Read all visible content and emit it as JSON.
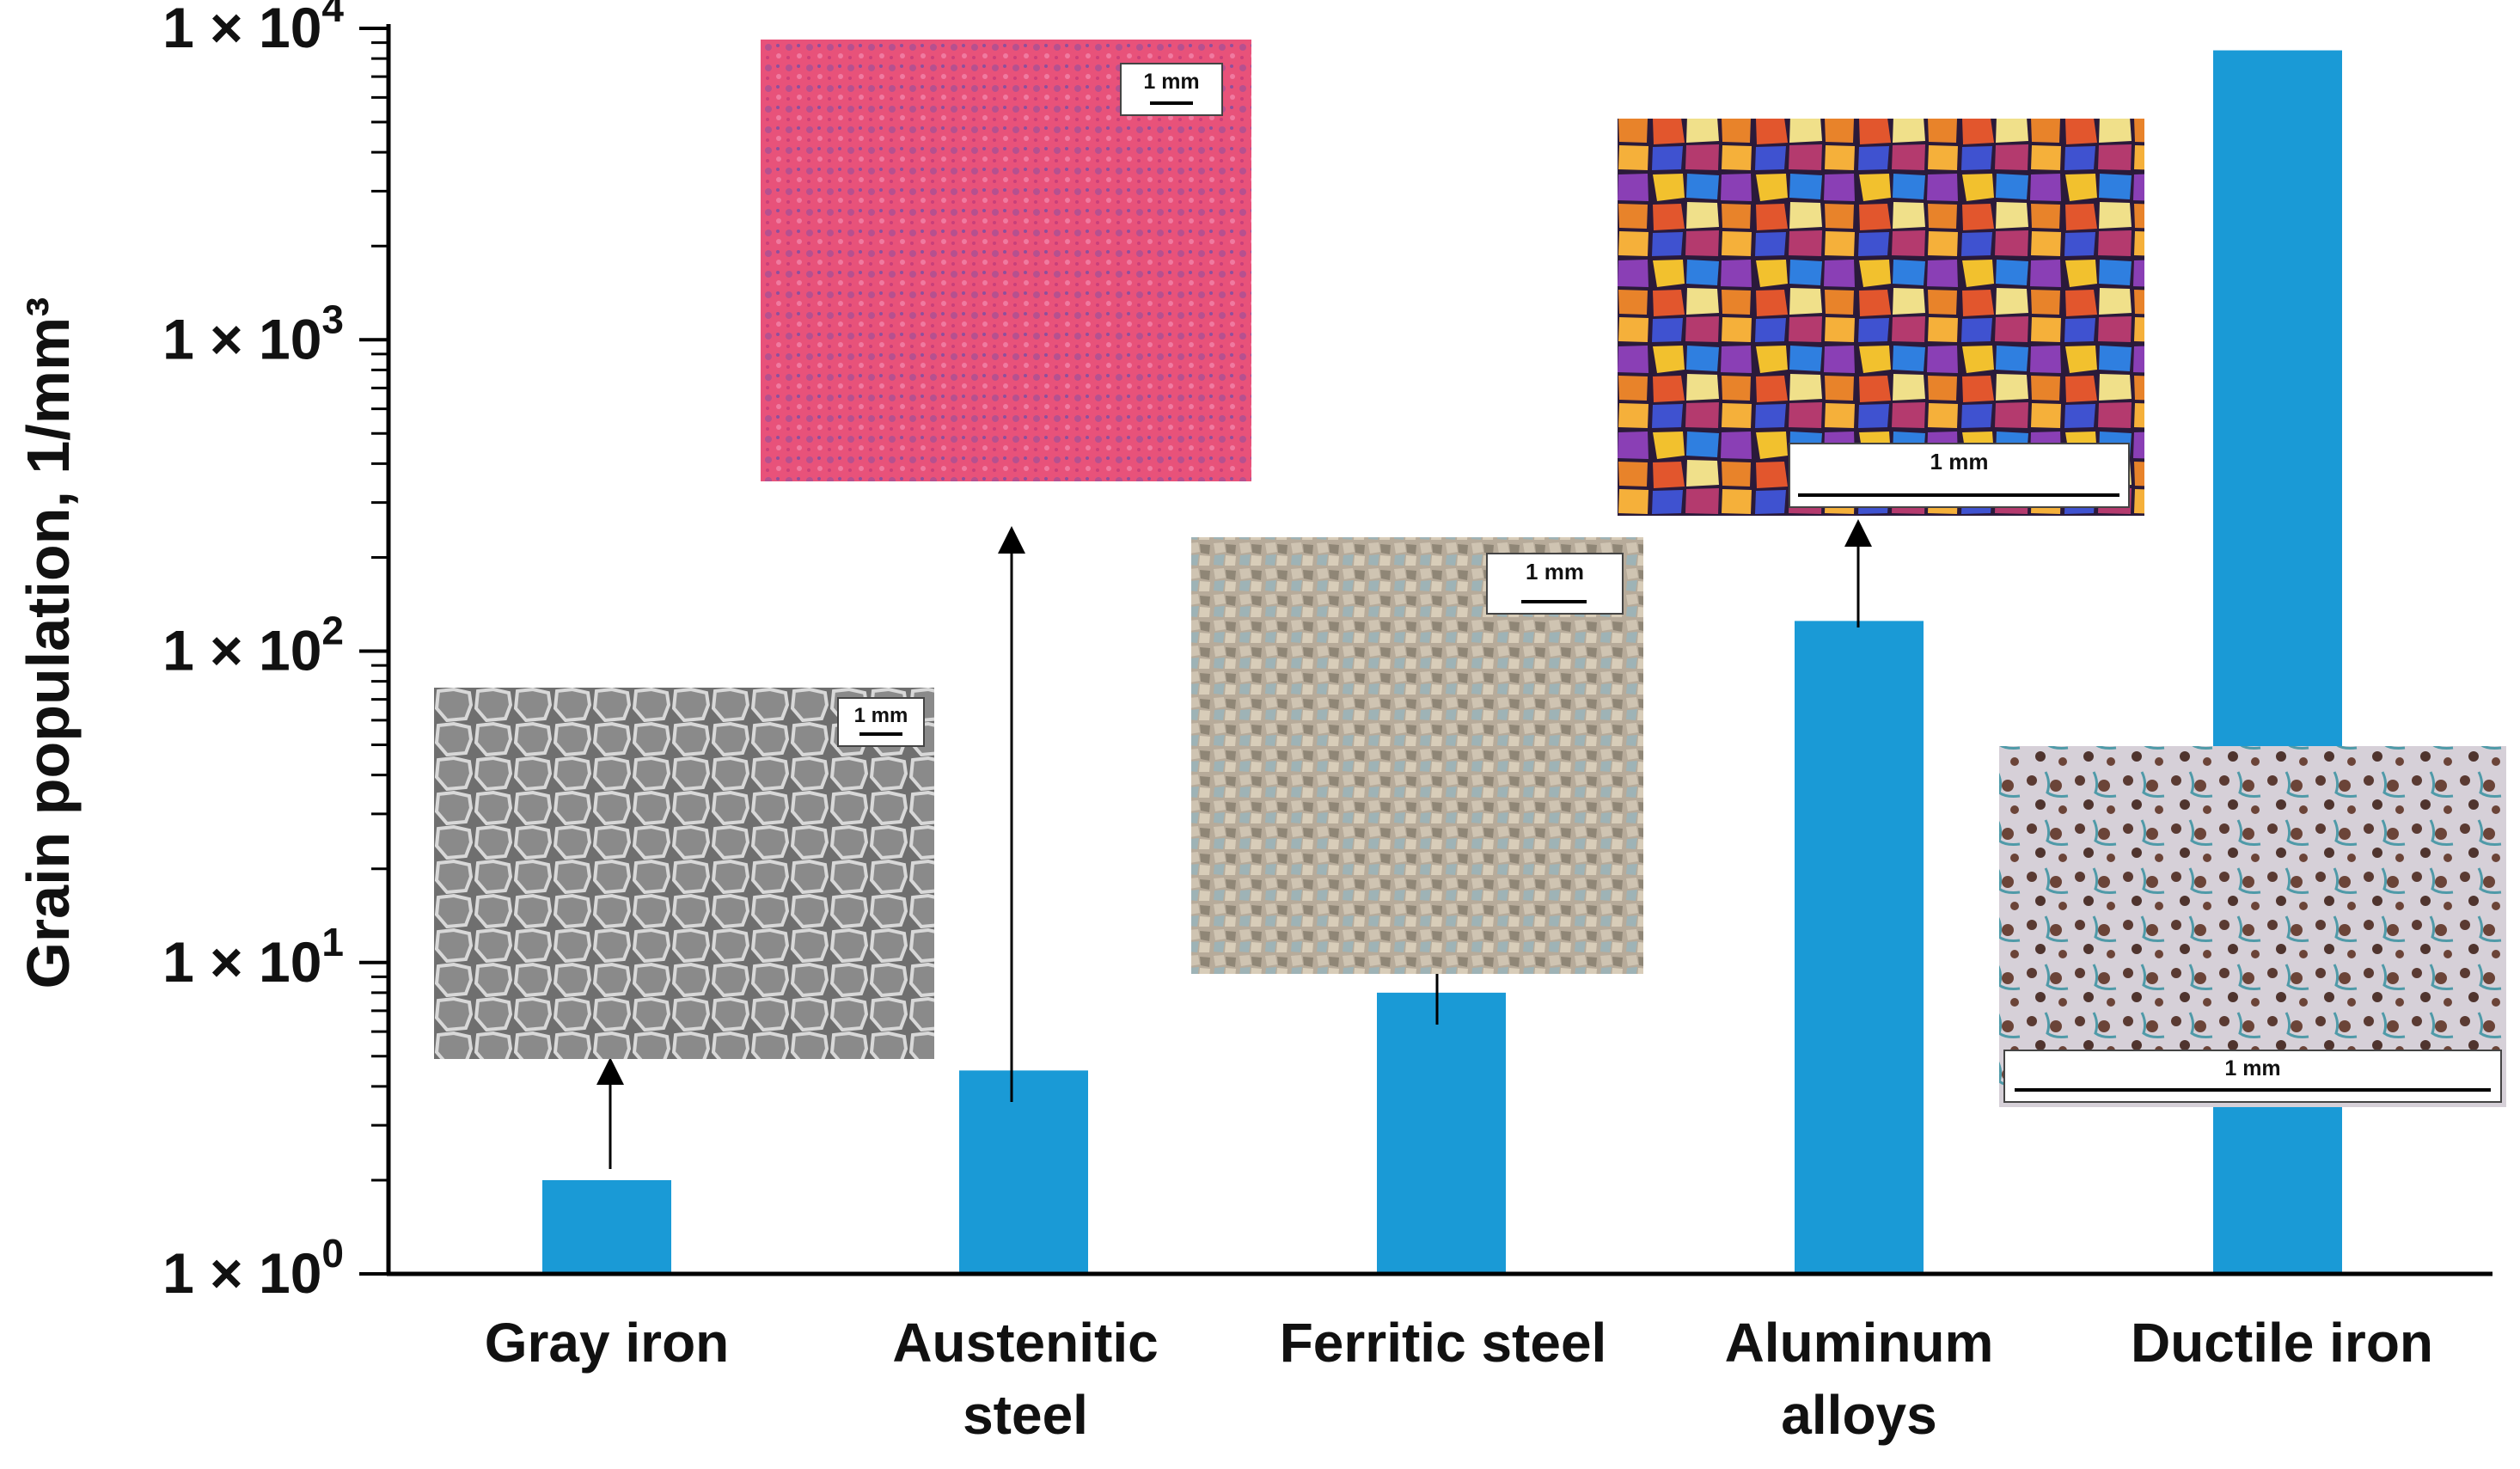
{
  "chart_data": {
    "type": "bar",
    "yscale": "log",
    "ylabel": "Grain population, 1/mm³",
    "ylim": [
      1,
      10000
    ],
    "categories": [
      "Gray iron",
      "Austenitic steel",
      "Ferritic steel",
      "Aluminum alloys",
      "Ductile iron"
    ],
    "category_lines": [
      [
        "Gray iron"
      ],
      [
        "Austenitic",
        "steel"
      ],
      [
        "Ferritic steel"
      ],
      [
        "Aluminum",
        "alloys"
      ],
      [
        "Ductile iron"
      ]
    ],
    "values": [
      2,
      4.5,
      8,
      125,
      8500
    ],
    "bar_color": "#1a9ad6",
    "y_ticks": [
      {
        "value": 1,
        "mantissa": "1 × 10",
        "exp": "0"
      },
      {
        "value": 10,
        "mantissa": "1 × 10",
        "exp": "1"
      },
      {
        "value": 100,
        "mantissa": "1 × 10",
        "exp": "2"
      },
      {
        "value": 1000,
        "mantissa": "1 × 10",
        "exp": "3"
      },
      {
        "value": 10000,
        "mantissa": "1 × 10",
        "exp": "4"
      }
    ],
    "micrographs": [
      {
        "category": "Gray iron",
        "scale_label": "1 mm",
        "palette": "gray"
      },
      {
        "category": "Austenitic steel",
        "scale_label": "1 mm",
        "palette": "pink"
      },
      {
        "category": "Ferritic steel",
        "scale_label": "1 mm",
        "palette": "beige"
      },
      {
        "category": "Aluminum alloys",
        "scale_label": "1 mm",
        "palette": "colorful"
      },
      {
        "category": "Ductile iron",
        "scale_label": "1 mm",
        "palette": "nodular"
      }
    ]
  }
}
